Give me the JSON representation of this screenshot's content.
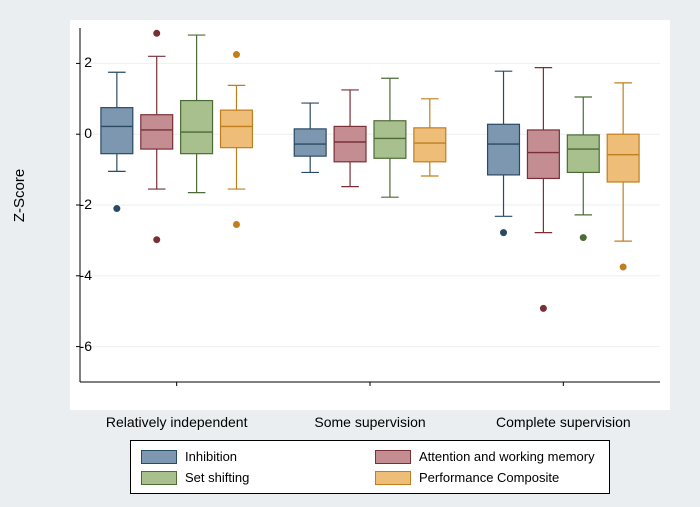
{
  "chart": {
    "type": "boxplot",
    "background_color": "#eaeef0",
    "plot_bg": "#ffffff",
    "grid_color": "#eef0f0",
    "axis_color": "#000000",
    "ylabel": "Z-Score",
    "ylabel_fontsize": 15,
    "ylim": [
      -7,
      3
    ],
    "yticks": [
      -6,
      -4,
      -2,
      0,
      2
    ],
    "xticks": [
      "Relatively independent",
      "Some supervision",
      "Complete supervision"
    ],
    "series": [
      {
        "name": "Inhibition",
        "fill": "#7d97b1",
        "stroke": "#2a4a63"
      },
      {
        "name": "Attention and working memory",
        "fill": "#c38d91",
        "stroke": "#7a2f37"
      },
      {
        "name": "Set shifting",
        "fill": "#a7c08d",
        "stroke": "#4c6b37"
      },
      {
        "name": "Performance Composite",
        "fill": "#eebd77",
        "stroke": "#c07e1f"
      }
    ],
    "boxes": [
      {
        "group": 0,
        "series": 0,
        "low": -1.05,
        "q1": -0.55,
        "med": 0.22,
        "q3": 0.75,
        "high": 1.75,
        "outliers": [
          -2.1
        ]
      },
      {
        "group": 0,
        "series": 1,
        "low": -1.55,
        "q1": -0.42,
        "med": 0.12,
        "q3": 0.55,
        "high": 2.2,
        "outliers": [
          2.85,
          -2.98
        ]
      },
      {
        "group": 0,
        "series": 2,
        "low": -1.65,
        "q1": -0.55,
        "med": 0.06,
        "q3": 0.95,
        "high": 2.8,
        "outliers": []
      },
      {
        "group": 0,
        "series": 3,
        "low": -1.55,
        "q1": -0.38,
        "med": 0.22,
        "q3": 0.68,
        "high": 1.38,
        "outliers": [
          2.25,
          -2.55
        ]
      },
      {
        "group": 1,
        "series": 0,
        "low": -1.08,
        "q1": -0.62,
        "med": -0.28,
        "q3": 0.15,
        "high": 0.88,
        "outliers": []
      },
      {
        "group": 1,
        "series": 1,
        "low": -1.48,
        "q1": -0.78,
        "med": -0.22,
        "q3": 0.22,
        "high": 1.25,
        "outliers": []
      },
      {
        "group": 1,
        "series": 2,
        "low": -1.78,
        "q1": -0.68,
        "med": -0.12,
        "q3": 0.38,
        "high": 1.58,
        "outliers": []
      },
      {
        "group": 1,
        "series": 3,
        "low": -1.18,
        "q1": -0.78,
        "med": -0.25,
        "q3": 0.18,
        "high": 1.0,
        "outliers": []
      },
      {
        "group": 2,
        "series": 0,
        "low": -2.32,
        "q1": -1.15,
        "med": -0.28,
        "q3": 0.28,
        "high": 1.78,
        "outliers": [
          -2.78
        ]
      },
      {
        "group": 2,
        "series": 1,
        "low": -2.78,
        "q1": -1.25,
        "med": -0.52,
        "q3": 0.12,
        "high": 1.88,
        "outliers": [
          -4.92
        ]
      },
      {
        "group": 2,
        "series": 2,
        "low": -2.28,
        "q1": -1.08,
        "med": -0.42,
        "q3": -0.02,
        "high": 1.05,
        "outliers": [
          -2.92
        ]
      },
      {
        "group": 2,
        "series": 3,
        "low": -3.02,
        "q1": -1.35,
        "med": -0.58,
        "q3": 0.0,
        "high": 1.45,
        "outliers": [
          -3.75
        ]
      }
    ],
    "box_width": 0.75,
    "group_spacing": 1.0,
    "legend": {
      "border": "#000000",
      "bg": "#ffffff",
      "swatch_w": 36,
      "swatch_h": 14,
      "fontsize": 13
    }
  }
}
